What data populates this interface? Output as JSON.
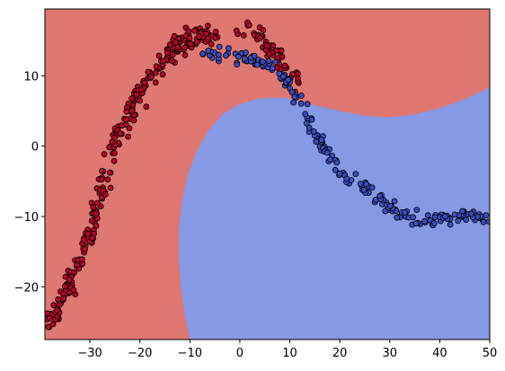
{
  "chart_data": {
    "type": "scatter",
    "xlim": [
      -39,
      50
    ],
    "ylim": [
      -27.5,
      19.5
    ],
    "x_ticks": [
      -30,
      -20,
      -10,
      0,
      10,
      20,
      30,
      40,
      50
    ],
    "y_ticks": [
      -20,
      -10,
      0,
      10
    ],
    "grid": false,
    "legend": "none",
    "region_colors": {
      "red_class": "#df7772",
      "blue_class": "#8599e4"
    },
    "point_colors": {
      "red_class": "#b40426",
      "blue_class": "#3b4cc0"
    },
    "decision_boundary": [
      [
        -10.0,
        -27.5
      ],
      [
        -11.0,
        -24.0
      ],
      [
        -11.8,
        -20.0
      ],
      [
        -12.2,
        -16.0
      ],
      [
        -12.2,
        -12.0
      ],
      [
        -11.6,
        -8.0
      ],
      [
        -10.4,
        -4.0
      ],
      [
        -8.8,
        -1.0
      ],
      [
        -6.5,
        2.0
      ],
      [
        -3.5,
        4.5
      ],
      [
        0.0,
        6.0
      ],
      [
        4.0,
        6.8
      ],
      [
        9.0,
        6.9
      ],
      [
        14.0,
        6.0
      ],
      [
        20.0,
        5.0
      ],
      [
        25.0,
        4.3
      ],
      [
        30.0,
        4.1
      ],
      [
        35.0,
        4.5
      ],
      [
        40.0,
        5.4
      ],
      [
        45.0,
        6.7
      ],
      [
        50.0,
        8.3
      ]
    ],
    "red_trend": [
      [
        -38.5,
        -25.8
      ],
      [
        -36.0,
        -22.5
      ],
      [
        -34.0,
        -19.0
      ],
      [
        -32.0,
        -16.0
      ],
      [
        -30.0,
        -12.0
      ],
      [
        -28.0,
        -7.0
      ],
      [
        -26.0,
        -2.0
      ],
      [
        -24.0,
        2.0
      ],
      [
        -22.0,
        5.0
      ],
      [
        -20.0,
        7.5
      ],
      [
        -17.0,
        10.5
      ],
      [
        -14.0,
        13.0
      ],
      [
        -11.0,
        15.0
      ],
      [
        -8.0,
        15.5
      ],
      [
        -5.0,
        15.0
      ]
    ],
    "red_hump": [
      [
        0.0,
        16.0
      ],
      [
        2.0,
        16.8
      ],
      [
        4.0,
        16.0
      ],
      [
        6.0,
        14.0
      ],
      [
        8.0,
        12.0
      ],
      [
        10.0,
        10.5
      ],
      [
        12.0,
        9.0
      ]
    ],
    "blue_trend": [
      [
        -8.0,
        13.0
      ],
      [
        -3.0,
        12.8
      ],
      [
        0.0,
        12.5
      ],
      [
        3.0,
        12.0
      ],
      [
        6.0,
        11.5
      ],
      [
        9.0,
        9.5
      ],
      [
        11.0,
        7.5
      ],
      [
        13.0,
        4.5
      ],
      [
        15.0,
        1.5
      ],
      [
        17.0,
        -0.5
      ],
      [
        19.0,
        -2.5
      ],
      [
        21.0,
        -4.0
      ],
      [
        24.0,
        -5.5
      ],
      [
        27.0,
        -6.5
      ],
      [
        30.0,
        -8.5
      ],
      [
        33.0,
        -10.0
      ],
      [
        36.0,
        -10.5
      ],
      [
        40.0,
        -10.2
      ],
      [
        43.0,
        -10.0
      ],
      [
        46.0,
        -9.8
      ],
      [
        49.5,
        -10.0
      ]
    ],
    "red_count": 360,
    "blue_count": 210
  }
}
